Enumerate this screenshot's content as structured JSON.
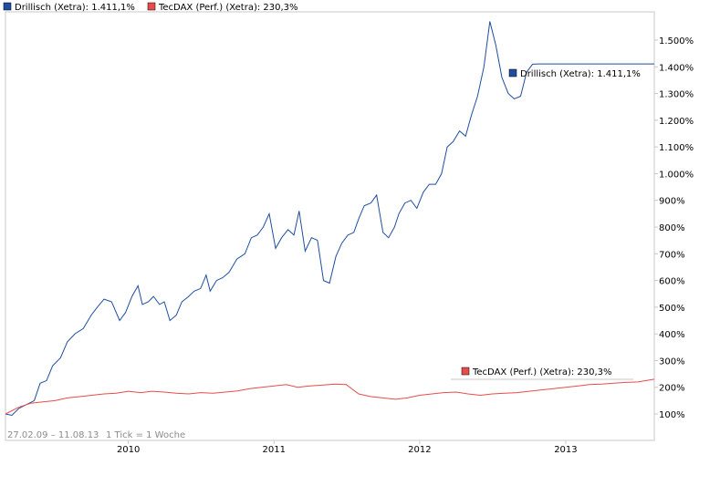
{
  "chart_data": {
    "type": "line",
    "date_range_label": "27.02.09 – 11.08.13",
    "tick_label": "1 Tick = 1 Woche",
    "x_tick_labels": [
      "2010",
      "2011",
      "2012",
      "2013"
    ],
    "y_tick_labels": [
      "100%",
      "200%",
      "300%",
      "400%",
      "500%",
      "600%",
      "700%",
      "800%",
      "900%",
      "1.000%",
      "1.100%",
      "1.200%",
      "1.300%",
      "1.400%",
      "1.500%"
    ],
    "ylim": [
      0,
      1600
    ],
    "xlim": [
      "2009-02-27",
      "2013-08-11"
    ],
    "grid": false,
    "legend_placement": "top",
    "series": [
      {
        "name": "Drillisch (Xetra): 1.411,1%",
        "color": "#1f4e9e",
        "legend_color": "#1f4e9e",
        "x": [
          "2009-02-27",
          "2009-03-15",
          "2009-04-01",
          "2009-04-20",
          "2009-05-10",
          "2009-05-25",
          "2009-06-10",
          "2009-06-25",
          "2009-07-15",
          "2009-08-01",
          "2009-08-20",
          "2009-09-10",
          "2009-09-30",
          "2009-10-15",
          "2009-11-01",
          "2009-11-20",
          "2009-12-10",
          "2009-12-25",
          "2010-01-10",
          "2010-01-25",
          "2010-02-05",
          "2010-02-20",
          "2010-03-05",
          "2010-03-20",
          "2010-04-01",
          "2010-04-15",
          "2010-05-01",
          "2010-05-15",
          "2010-06-01",
          "2010-06-15",
          "2010-07-01",
          "2010-07-15",
          "2010-07-25",
          "2010-08-10",
          "2010-08-25",
          "2010-09-10",
          "2010-09-30",
          "2010-10-20",
          "2010-11-05",
          "2010-11-20",
          "2010-12-05",
          "2010-12-20",
          "2011-01-05",
          "2011-01-20",
          "2011-02-05",
          "2011-02-20",
          "2011-03-05",
          "2011-03-20",
          "2011-04-05",
          "2011-04-20",
          "2011-05-05",
          "2011-05-20",
          "2011-06-05",
          "2011-06-20",
          "2011-07-05",
          "2011-07-20",
          "2011-08-01",
          "2011-08-15",
          "2011-09-01",
          "2011-09-15",
          "2011-10-01",
          "2011-10-15",
          "2011-10-30",
          "2011-11-10",
          "2011-11-25",
          "2011-12-10",
          "2011-12-25",
          "2012-01-10",
          "2012-01-25",
          "2012-02-10",
          "2012-02-25",
          "2012-03-10",
          "2012-03-25",
          "2012-04-10",
          "2012-04-25",
          "2012-05-10",
          "2012-05-25",
          "2012-06-10",
          "2012-06-25",
          "2012-07-10",
          "2012-07-25",
          "2012-08-10",
          "2012-08-25",
          "2012-09-10",
          "2012-09-25",
          "2012-10-10",
          "2012-10-25",
          "2012-11-10",
          "2012-11-25",
          "2012-12-10",
          "2012-12-25",
          "2013-01-10",
          "2013-01-25",
          "2013-02-05",
          "2013-02-20",
          "2013-03-01",
          "2013-03-10",
          "2013-03-20",
          "2013-04-01",
          "2013-04-15",
          "2013-05-01",
          "2013-05-15",
          "2013-06-01",
          "2013-06-15",
          "2013-07-01",
          "2013-07-20",
          "2013-08-11"
        ],
        "values": [
          100,
          95,
          120,
          135,
          150,
          215,
          225,
          280,
          310,
          370,
          400,
          420,
          470,
          500,
          530,
          520,
          450,
          480,
          540,
          580,
          510,
          520,
          540,
          510,
          520,
          450,
          470,
          520,
          540,
          560,
          570,
          620,
          560,
          600,
          610,
          630,
          680,
          700,
          760,
          770,
          800,
          850,
          720,
          760,
          790,
          770,
          860,
          710,
          760,
          750,
          600,
          590,
          690,
          740,
          770,
          780,
          830,
          880,
          890,
          920,
          780,
          760,
          800,
          850,
          890,
          900,
          870,
          930,
          960,
          960,
          1000,
          1100,
          1120,
          1160,
          1140,
          1220,
          1290,
          1400,
          1570,
          1480,
          1360,
          1300,
          1280,
          1290,
          1380,
          1410,
          1411,
          1411,
          1411,
          1411,
          1411,
          1411,
          1411,
          1411,
          1411,
          1411,
          1411,
          1411,
          1411,
          1411,
          1411,
          1411,
          1411,
          1411,
          1411,
          1411,
          1411
        ]
      },
      {
        "name": "TecDAX (Perf.) (Xetra): 230,3%",
        "color": "#e84c4c",
        "legend_color": "#e84c4c",
        "x": [
          "2009-02-27",
          "2009-04-01",
          "2009-05-01",
          "2009-06-01",
          "2009-07-01",
          "2009-08-01",
          "2009-09-01",
          "2009-10-01",
          "2009-11-01",
          "2009-12-01",
          "2010-01-01",
          "2010-02-01",
          "2010-03-01",
          "2010-04-01",
          "2010-05-01",
          "2010-06-01",
          "2010-07-01",
          "2010-08-01",
          "2010-09-01",
          "2010-10-01",
          "2010-11-01",
          "2010-12-01",
          "2011-01-01",
          "2011-02-01",
          "2011-03-01",
          "2011-04-01",
          "2011-05-01",
          "2011-06-01",
          "2011-07-01",
          "2011-08-01",
          "2011-09-01",
          "2011-10-01",
          "2011-11-01",
          "2011-12-01",
          "2012-01-01",
          "2012-02-01",
          "2012-03-01",
          "2012-04-01",
          "2012-05-01",
          "2012-06-01",
          "2012-07-01",
          "2012-08-01",
          "2012-09-01",
          "2012-10-01",
          "2012-11-01",
          "2012-12-01",
          "2013-01-01",
          "2013-02-01",
          "2013-03-01",
          "2013-04-01",
          "2013-05-01",
          "2013-06-01",
          "2013-07-01",
          "2013-08-11"
        ],
        "values": [
          100,
          125,
          140,
          145,
          150,
          160,
          165,
          170,
          175,
          178,
          185,
          180,
          185,
          182,
          178,
          175,
          180,
          178,
          182,
          186,
          195,
          200,
          205,
          210,
          200,
          205,
          208,
          212,
          210,
          175,
          165,
          160,
          155,
          160,
          170,
          175,
          180,
          182,
          175,
          170,
          175,
          178,
          180,
          185,
          190,
          195,
          200,
          205,
          210,
          212,
          215,
          218,
          220,
          230
        ]
      }
    ],
    "legend_entries": [
      "Drillisch (Xetra): 1.411,1%",
      "TecDAX (Perf.) (Xetra): 230,3%"
    ],
    "annotations": [
      "Drillisch (Xetra): 1.411,1%",
      "TecDAX (Perf.) (Xetra): 230,3%"
    ]
  }
}
